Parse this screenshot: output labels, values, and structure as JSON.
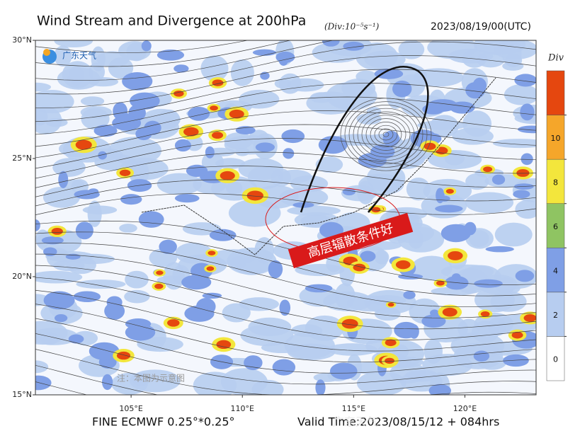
{
  "header": {
    "title": "Wind Stream and Divergence at 200hPa",
    "units": "(Div:10⁻⁵s⁻¹)",
    "date": "2023/08/19/00(UTC)"
  },
  "logo": {
    "text": "广东天气"
  },
  "map": {
    "lon_range": [
      100.7,
      123.2
    ],
    "lat_range": [
      15,
      30
    ],
    "lon_ticks": [
      {
        "value": 105,
        "label": "105°E"
      },
      {
        "value": 110,
        "label": "110°E"
      },
      {
        "value": 115,
        "label": "115°E"
      },
      {
        "value": 120,
        "label": "120°E"
      }
    ],
    "lat_ticks": [
      {
        "value": 30,
        "label": "30°N"
      },
      {
        "value": 25,
        "label": "25°N"
      },
      {
        "value": 20,
        "label": "20°N"
      },
      {
        "value": 15,
        "label": "15°N"
      }
    ],
    "annotation": "高层辐散条件好",
    "note": "注：本图为示意图"
  },
  "colorbar": {
    "title": "Div",
    "colors": [
      "#ffffff",
      "#b7cdf0",
      "#7f9fe6",
      "#8fc462",
      "#f3e63c",
      "#f5a62a",
      "#e5470f"
    ],
    "ticks": [
      0,
      2,
      4,
      6,
      8,
      10
    ]
  },
  "footer": {
    "model": "FINE ECMWF 0.25°*0.25°",
    "valid": "Valid Time:2023/08/15/12 + 084hrs",
    "watermark": "广东天气"
  }
}
